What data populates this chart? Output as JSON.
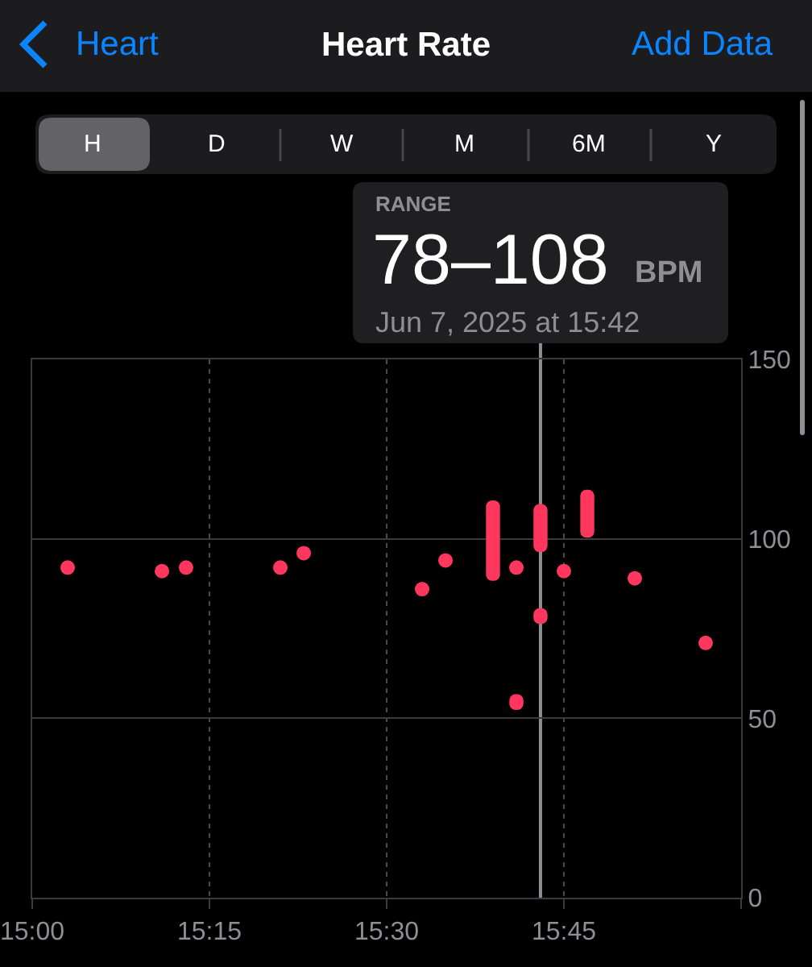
{
  "chart_data": {
    "type": "scatter",
    "title": "Heart Rate",
    "annotations": [
      "Heart",
      "Add Data",
      "H",
      "D",
      "W",
      "M",
      "6M",
      "Y",
      "RANGE",
      "78–108",
      "BPM",
      "Jun 7, 2025 at 15:42"
    ],
    "xlim": [
      15,
      16
    ],
    "xticks": [
      {
        "value": 15,
        "label": "15:00"
      },
      {
        "value": 15.25,
        "label": "15:15"
      },
      {
        "value": 15.5,
        "label": "15:30"
      },
      {
        "value": 15.75,
        "label": "15:45"
      },
      {
        "value": 16,
        "label": null
      }
    ],
    "ylim": [
      0,
      150
    ],
    "yticks": [
      0,
      50,
      100,
      150
    ],
    "grid": true,
    "marker": "circle",
    "series": [
      {
        "color": "#ff375f",
        "x": [
          15.05,
          15.183,
          15.217,
          15.35,
          15.383,
          15.55,
          15.583,
          15.683,
          15.75,
          15.85,
          15.95
        ],
        "values": [
          92,
          91,
          92,
          92,
          96,
          86,
          94,
          92,
          91,
          89,
          71
        ]
      },
      {
        "type": "bar",
        "color": "#ff375f",
        "x": [
          15.65,
          15.717,
          15.783
        ],
        "base": [
          90,
          98,
          102
        ],
        "values": [
          19,
          10,
          10
        ]
      },
      {
        "type": "bar",
        "color": "#ff375f",
        "x": [
          15.683,
          15.717
        ],
        "base": [
          54,
          78
        ],
        "values": [
          1,
          1
        ]
      }
    ],
    "ref_lines": [
      {
        "axis": "x",
        "value": 15.717,
        "color": "#8e8e93"
      }
    ]
  }
}
